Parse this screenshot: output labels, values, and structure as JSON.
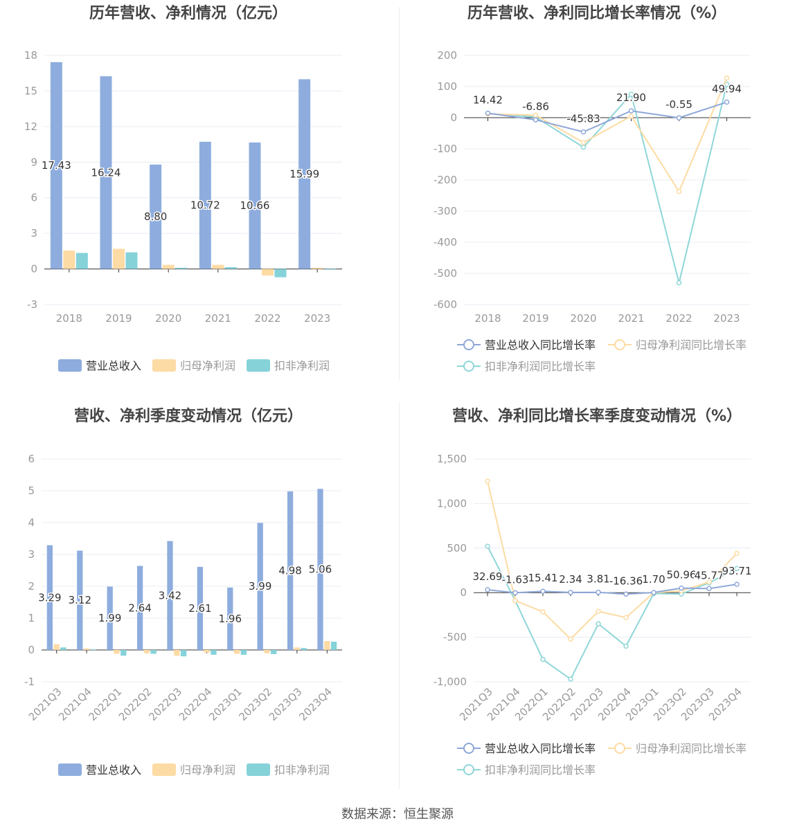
{
  "colors": {
    "revenue": "#8eadde",
    "netprofit": "#fddba5",
    "deducted": "#85d2d9",
    "growth_revenue": "#8ea7d8",
    "growth_netprofit": "#fddba3",
    "growth_deducted": "#8fd6d8",
    "axis": "#333333",
    "grid": "#e8ecf3",
    "label": "#999999",
    "title": "#444444"
  },
  "source": "数据来源：恒生聚源",
  "chart_data": [
    {
      "type": "bar",
      "title": "历年营收、净利情况（亿元）",
      "categories": [
        "2018",
        "2019",
        "2020",
        "2021",
        "2022",
        "2023"
      ],
      "ylim": [
        -3,
        18
      ],
      "yticks": [
        -3,
        0,
        3,
        6,
        9,
        12,
        15,
        18
      ],
      "legend": "bottom",
      "grid": true,
      "series": [
        {
          "name": "营业总收入",
          "values": [
            17.43,
            16.24,
            8.8,
            10.72,
            10.66,
            15.99
          ],
          "labels": [
            "17.43",
            "16.24",
            "8.80",
            "10.72",
            "10.66",
            "15.99"
          ]
        },
        {
          "name": "归母净利润",
          "values": [
            1.55,
            1.7,
            0.35,
            0.35,
            -0.55,
            0.1
          ]
        },
        {
          "name": "扣非净利润",
          "values": [
            1.35,
            1.4,
            0.1,
            0.15,
            -0.7,
            -0.05
          ]
        }
      ]
    },
    {
      "type": "line",
      "title": "历年营收、净利同比增长率情况（%）",
      "categories": [
        "2018",
        "2019",
        "2020",
        "2021",
        "2022",
        "2023"
      ],
      "ylim": [
        -600,
        200
      ],
      "yticks": [
        -600,
        -500,
        -400,
        -300,
        -200,
        -100,
        0,
        100,
        200
      ],
      "legend": "bottom",
      "grid": true,
      "series": [
        {
          "name": "营业总收入同比增长率",
          "values": [
            14.42,
            -6.86,
            -45.83,
            21.9,
            -0.55,
            49.94
          ],
          "labels": [
            "14.42",
            "-6.86",
            "-45.83",
            "21.90",
            "-0.55",
            "49.94"
          ]
        },
        {
          "name": "归母净利润同比增长率",
          "values": [
            12,
            8,
            -80,
            5,
            -237,
            127
          ]
        },
        {
          "name": "扣非净利润同比增长率",
          "values": [
            13,
            2,
            -95,
            75,
            -530,
            107
          ]
        }
      ]
    },
    {
      "type": "bar",
      "title": "营收、净利季度变动情况（亿元）",
      "categories": [
        "2021Q3",
        "2021Q4",
        "2022Q1",
        "2022Q2",
        "2022Q3",
        "2022Q4",
        "2023Q1",
        "2023Q2",
        "2023Q3",
        "2023Q4"
      ],
      "ylim": [
        -1,
        6
      ],
      "yticks": [
        -1,
        0,
        1,
        2,
        3,
        4,
        5,
        6
      ],
      "legend": "bottom",
      "grid": true,
      "series": [
        {
          "name": "营业总收入",
          "values": [
            3.29,
            3.12,
            1.99,
            2.64,
            3.42,
            2.61,
            1.96,
            3.99,
            4.98,
            5.06
          ],
          "labels": [
            "3.29",
            "3.12",
            "1.99",
            "2.64",
            "3.42",
            "2.61",
            "1.96",
            "3.99",
            "4.98",
            "5.06"
          ]
        },
        {
          "name": "归母净利润",
          "values": [
            0.18,
            0.05,
            -0.12,
            -0.1,
            -0.18,
            -0.08,
            -0.12,
            -0.1,
            0.08,
            0.28
          ]
        },
        {
          "name": "扣非净利润",
          "values": [
            0.08,
            0.02,
            -0.18,
            -0.12,
            -0.2,
            -0.15,
            -0.15,
            -0.13,
            0.06,
            0.26
          ]
        }
      ]
    },
    {
      "type": "line",
      "title": "营收、净利同比增长率季度变动情况（%）",
      "categories": [
        "2021Q3",
        "2021Q4",
        "2022Q1",
        "2022Q2",
        "2022Q3",
        "2022Q4",
        "2023Q1",
        "2023Q2",
        "2023Q3",
        "2023Q4"
      ],
      "ylim": [
        -1000,
        1500
      ],
      "yticks": [
        -1000,
        -500,
        0,
        500,
        1000,
        1500
      ],
      "ytick_labels": [
        "-1,000",
        "-500",
        "0",
        "500",
        "1,000",
        "1,500"
      ],
      "legend": "bottom",
      "grid": true,
      "series": [
        {
          "name": "营业总收入同比增长率",
          "values": [
            32.69,
            -1.63,
            15.41,
            2.34,
            3.81,
            -16.36,
            1.7,
            50.96,
            45.77,
            93.71
          ],
          "labels": [
            "32.69",
            "-1.63",
            "15.41",
            "2.34",
            "3.81",
            "-16.36",
            "1.70",
            "50.96",
            "45.77",
            "93.71"
          ]
        },
        {
          "name": "归母净利润同比增长率",
          "values": [
            1250,
            -90,
            -215,
            -520,
            -210,
            -280,
            0,
            20,
            120,
            440
          ]
        },
        {
          "name": "扣非净利润同比增长率",
          "values": [
            520,
            -90,
            -750,
            -970,
            -350,
            -600,
            -10,
            -15,
            110,
            270
          ]
        }
      ]
    }
  ]
}
